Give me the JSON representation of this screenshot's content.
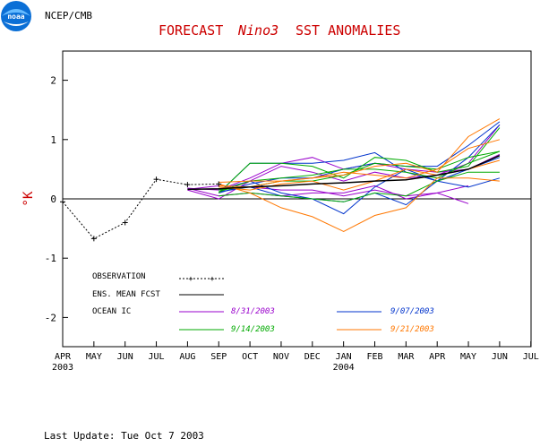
{
  "header": {
    "logo_text": "noaa",
    "agency": "NCEP/CMB",
    "title_part1": "FORECAST",
    "title_part2": "Nino3",
    "title_part3": "SST ANOMALIES"
  },
  "footer": {
    "last_update": "Last Update: Tue Oct 7 2003"
  },
  "colors": {
    "title": "#cc0000",
    "observation": "#000000",
    "ens_mean": "#000000",
    "aug31": "#9900cc",
    "sep07": "#0033cc",
    "sep14": "#00aa00",
    "sep21": "#ff7700"
  },
  "chart_data": {
    "type": "line",
    "ylabel": "°K",
    "ylim": [
      -2.5,
      2.5
    ],
    "yticks": [
      -2,
      -1,
      0,
      1,
      2
    ],
    "x_tick_labels": [
      "APR",
      "MAY",
      "JUN",
      "JUL",
      "AUG",
      "SEP",
      "OCT",
      "NOV",
      "DEC",
      "JAN",
      "FEB",
      "MAR",
      "APR",
      "MAY",
      "JUN",
      "JUL"
    ],
    "year_labels": [
      {
        "month_index": 0,
        "text": "2003"
      },
      {
        "month_index": 9,
        "text": "2004"
      }
    ],
    "zero_line": true,
    "legend": {
      "observation": "OBSERVATION",
      "ens_mean": "ENS. MEAN FCST",
      "ocean_ic": "OCEAN IC",
      "ic_dates": [
        "8/31/2003",
        "9/07/2003",
        "9/14/2003",
        "9/21/2003"
      ]
    },
    "observation": {
      "x": [
        0,
        1,
        2,
        3,
        4,
        5
      ],
      "values": [
        -0.05,
        -0.67,
        -0.4,
        0.33,
        0.24,
        0.25
      ]
    },
    "ensemble_mean": {
      "x": [
        4,
        5,
        6,
        7,
        8,
        9,
        10,
        11,
        12,
        13,
        14
      ],
      "values": [
        0.16,
        0.17,
        0.2,
        0.22,
        0.25,
        0.27,
        0.3,
        0.32,
        0.4,
        0.5,
        0.73
      ]
    },
    "members": [
      {
        "group": "aug31",
        "x": [
          4,
          5,
          6,
          7,
          8,
          9,
          10,
          11,
          12,
          13
        ],
        "values": [
          0.16,
          0.22,
          0.2,
          0.15,
          0.15,
          0.05,
          0.15,
          0.05,
          0.1,
          -0.08
        ]
      },
      {
        "group": "aug31",
        "x": [
          4,
          5,
          6,
          7,
          8,
          9,
          10,
          11,
          12,
          13,
          14
        ],
        "values": [
          0.15,
          0.0,
          0.3,
          0.55,
          0.45,
          0.3,
          0.45,
          0.35,
          0.4,
          0.6,
          1.25
        ]
      },
      {
        "group": "aug31",
        "x": [
          4,
          5,
          6,
          7,
          8,
          9,
          10,
          11,
          12,
          13
        ],
        "values": [
          0.18,
          0.05,
          0.1,
          0.05,
          0.1,
          0.1,
          0.22,
          0.0,
          0.1,
          0.22
        ]
      },
      {
        "group": "aug31",
        "x": [
          4,
          5,
          6,
          7,
          8,
          9,
          10,
          11,
          12,
          13,
          14
        ],
        "values": [
          0.18,
          0.15,
          0.35,
          0.6,
          0.7,
          0.5,
          0.6,
          0.5,
          0.45,
          0.5,
          0.75
        ]
      },
      {
        "group": "sep07",
        "x": [
          5,
          6,
          7,
          8,
          9,
          10,
          11,
          12,
          13,
          14
        ],
        "values": [
          0.1,
          0.6,
          0.6,
          0.6,
          0.65,
          0.78,
          0.45,
          0.3,
          0.7,
          1.25
        ]
      },
      {
        "group": "sep07",
        "x": [
          5,
          6,
          7,
          8,
          9,
          10,
          11,
          12,
          13,
          14
        ],
        "values": [
          0.15,
          0.3,
          0.1,
          0.0,
          -0.05,
          0.1,
          -0.1,
          0.3,
          0.5,
          0.7
        ]
      },
      {
        "group": "sep07",
        "x": [
          5,
          6,
          7,
          8,
          9,
          10,
          11,
          12,
          13,
          14
        ],
        "values": [
          0.12,
          0.2,
          0.05,
          0.0,
          -0.25,
          0.2,
          0.5,
          0.3,
          0.2,
          0.35
        ]
      },
      {
        "group": "sep07",
        "x": [
          5,
          6,
          7,
          8,
          9,
          10,
          11,
          12,
          13,
          14
        ],
        "values": [
          0.1,
          0.25,
          0.35,
          0.35,
          0.5,
          0.6,
          0.55,
          0.55,
          0.9,
          1.3
        ]
      },
      {
        "group": "sep14",
        "x": [
          5,
          6,
          7,
          8,
          9,
          10,
          11,
          12,
          13,
          14
        ],
        "values": [
          0.1,
          0.6,
          0.6,
          0.55,
          0.35,
          0.7,
          0.65,
          0.45,
          0.55,
          1.2
        ]
      },
      {
        "group": "sep14",
        "x": [
          5,
          6,
          7,
          8,
          9,
          10,
          11,
          12,
          13,
          14
        ],
        "values": [
          0.15,
          0.2,
          0.3,
          0.3,
          0.4,
          0.6,
          0.55,
          0.5,
          0.7,
          0.8
        ]
      },
      {
        "group": "sep14",
        "x": [
          5,
          6,
          7,
          8,
          9,
          10,
          11,
          12,
          13,
          14
        ],
        "values": [
          0.05,
          0.1,
          0.05,
          0.0,
          -0.05,
          0.1,
          0.05,
          0.3,
          0.45,
          0.45
        ]
      },
      {
        "group": "sep14",
        "x": [
          5,
          6,
          7,
          8,
          9,
          10,
          11,
          12,
          13,
          14
        ],
        "values": [
          0.12,
          0.3,
          0.35,
          0.4,
          0.5,
          0.5,
          0.45,
          0.35,
          0.6,
          0.8
        ]
      },
      {
        "group": "sep21",
        "x": [
          5,
          6,
          7,
          8,
          9,
          10,
          11,
          12,
          13,
          14
        ],
        "values": [
          0.25,
          0.1,
          -0.15,
          -0.3,
          -0.55,
          -0.28,
          -0.15,
          0.35,
          0.35,
          0.3
        ]
      },
      {
        "group": "sep21",
        "x": [
          5,
          6,
          7,
          8,
          9,
          10,
          11,
          12,
          13,
          14
        ],
        "values": [
          0.28,
          0.3,
          0.3,
          0.35,
          0.4,
          0.55,
          0.6,
          0.45,
          1.05,
          1.35
        ]
      },
      {
        "group": "sep21",
        "x": [
          5,
          6,
          7,
          8,
          9,
          10,
          11,
          12,
          13,
          14
        ],
        "values": [
          0.2,
          0.15,
          0.25,
          0.3,
          0.15,
          0.3,
          0.5,
          0.4,
          0.5,
          0.65
        ]
      },
      {
        "group": "sep21",
        "x": [
          5,
          6,
          7,
          8,
          9,
          10,
          11,
          12,
          13,
          14
        ],
        "values": [
          0.22,
          0.2,
          0.3,
          0.35,
          0.45,
          0.4,
          0.35,
          0.5,
          0.85,
          1.0
        ]
      }
    ]
  }
}
